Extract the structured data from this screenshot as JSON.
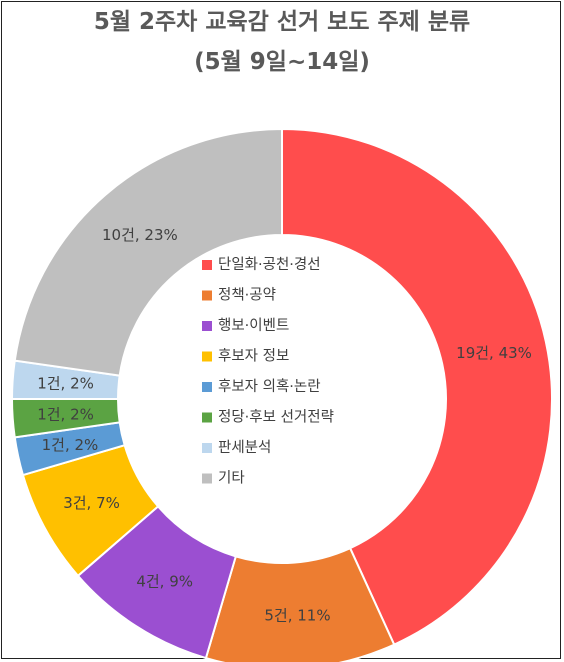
{
  "chart_data": {
    "type": "pie",
    "title": "5월 2주차 교육감 선거 보도 주제 분류",
    "subtitle": "(5월 9일~14일)",
    "legend_position": "center",
    "slices": [
      {
        "name": "단일화·공천·경선",
        "count": 19,
        "percent": 43,
        "label": "19건, 43%",
        "color": "#FF4D4D"
      },
      {
        "name": "정책·공약",
        "count": 5,
        "percent": 11,
        "label": "5건, 11%",
        "color": "#ED7D31"
      },
      {
        "name": "행보·이벤트",
        "count": 4,
        "percent": 9,
        "label": "4건, 9%",
        "color": "#9B4FD1"
      },
      {
        "name": "후보자 정보",
        "count": 3,
        "percent": 7,
        "label": "3건, 7%",
        "color": "#FFC000"
      },
      {
        "name": "후보자 의혹·논란",
        "count": 1,
        "percent": 2,
        "label": "1건, 2%",
        "color": "#5B9BD5"
      },
      {
        "name": "정당·후보 선거전략",
        "count": 1,
        "percent": 2,
        "label": "1건, 2%",
        "color": "#5BA343"
      },
      {
        "name": "판세분석",
        "count": 1,
        "percent": 2,
        "label": "1건, 2%",
        "color": "#BDD7EE"
      },
      {
        "name": "기타",
        "count": 10,
        "percent": 23,
        "label": "10건, 23%",
        "color": "#BFBFBF"
      }
    ]
  }
}
